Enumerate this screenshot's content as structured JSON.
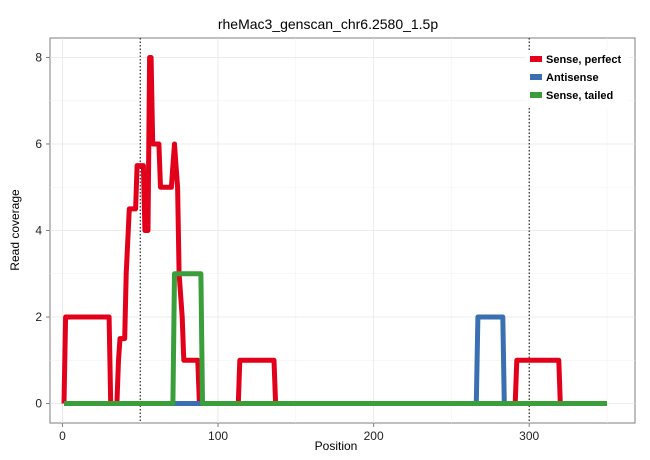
{
  "chart_data": {
    "type": "line",
    "title": "rheMac3_genscan_chr6.2580_1.5p",
    "xlabel": "Position",
    "ylabel": "Read coverage",
    "xlim": [
      -8,
      368
    ],
    "ylim": [
      -0.45,
      8.45
    ],
    "x_ticks": [
      0,
      100,
      200,
      300
    ],
    "y_ticks": [
      0,
      2,
      4,
      6,
      8
    ],
    "x_minor": [
      50,
      150,
      250,
      350
    ],
    "y_minor": [
      1,
      3,
      5,
      7
    ],
    "grid": true,
    "legend_position": "top-right",
    "vlines": [
      50,
      300
    ],
    "series": [
      {
        "name": "Sense, perfect",
        "color": "#e3001b",
        "x": [
          1,
          2,
          30,
          31,
          35,
          36,
          37,
          40,
          41,
          43,
          44,
          47,
          48,
          49,
          52,
          53,
          55,
          56,
          57,
          58,
          59,
          62,
          63,
          70,
          71,
          72,
          73,
          74,
          75,
          77,
          78,
          81,
          82,
          87,
          88,
          100,
          113,
          114,
          136,
          137,
          290,
          291,
          292,
          319,
          320,
          350
        ],
        "y": [
          0,
          2,
          2,
          0,
          0,
          1,
          1.5,
          1.5,
          3,
          4.5,
          4.5,
          4.5,
          5.5,
          5.5,
          5.5,
          4,
          4,
          8,
          8,
          6,
          6,
          6,
          5,
          5,
          5.5,
          6,
          5.5,
          5,
          3,
          2,
          1,
          1,
          1,
          1,
          0,
          0,
          0,
          1,
          1,
          0,
          0,
          0,
          1,
          1,
          0,
          0
        ]
      },
      {
        "name": "Antisense",
        "color": "#3a6fb2",
        "x": [
          1,
          266,
          267,
          283,
          284,
          350
        ],
        "y": [
          0,
          0,
          2,
          2,
          0,
          0
        ]
      },
      {
        "name": "Sense, tailed",
        "color": "#3a9e3a",
        "x": [
          1,
          71,
          72,
          89,
          90,
          350
        ],
        "y": [
          0,
          0,
          3,
          3,
          0,
          0
        ]
      }
    ]
  }
}
